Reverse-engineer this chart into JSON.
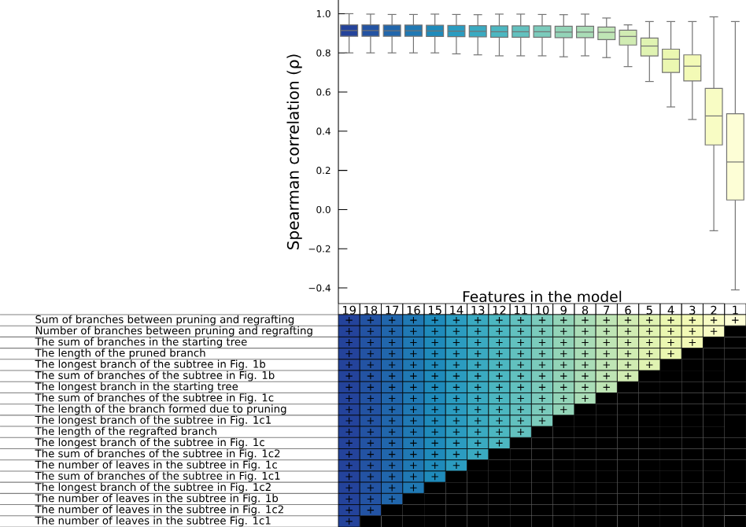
{
  "chart_data": [
    {
      "type": "box",
      "xlabel": "Features in the model",
      "ylabel": "Spearman correlation (ρ)",
      "categories": [
        "19",
        "18",
        "17",
        "16",
        "15",
        "14",
        "13",
        "12",
        "11",
        "10",
        "9",
        "8",
        "7",
        "6",
        "5",
        "4",
        "3",
        "2",
        "1"
      ],
      "colors": [
        "#24439b",
        "#2353a3",
        "#2166ac",
        "#2079b4",
        "#1f8bbb",
        "#2b9cc0",
        "#3aaac1",
        "#4cb7c1",
        "#62c1bf",
        "#7bcbbc",
        "#93d4b8",
        "#aaddb7",
        "#bfe5b5",
        "#d1ecb3",
        "#e0f3b2",
        "#ebf7b1",
        "#f3fab6",
        "#f8fcc4",
        "#fdfed6"
      ],
      "boxes": [
        {
          "low": 0.8,
          "q1": 0.885,
          "median": 0.914,
          "q3": 0.943,
          "high": 1.0
        },
        {
          "low": 0.8,
          "q1": 0.885,
          "median": 0.914,
          "q3": 0.943,
          "high": 0.998
        },
        {
          "low": 0.8,
          "q1": 0.885,
          "median": 0.913,
          "q3": 0.942,
          "high": 0.996
        },
        {
          "low": 0.8,
          "q1": 0.885,
          "median": 0.913,
          "q3": 0.942,
          "high": 0.996
        },
        {
          "low": 0.8,
          "q1": 0.884,
          "median": 0.912,
          "q3": 0.941,
          "high": 0.998
        },
        {
          "low": 0.795,
          "q1": 0.883,
          "median": 0.911,
          "q3": 0.94,
          "high": 0.996
        },
        {
          "low": 0.79,
          "q1": 0.882,
          "median": 0.91,
          "q3": 0.939,
          "high": 0.995
        },
        {
          "low": 0.785,
          "q1": 0.88,
          "median": 0.908,
          "q3": 0.938,
          "high": 0.998
        },
        {
          "low": 0.785,
          "q1": 0.88,
          "median": 0.908,
          "q3": 0.938,
          "high": 0.998
        },
        {
          "low": 0.785,
          "q1": 0.88,
          "median": 0.908,
          "q3": 0.938,
          "high": 0.996
        },
        {
          "low": 0.78,
          "q1": 0.878,
          "median": 0.906,
          "q3": 0.936,
          "high": 0.995
        },
        {
          "low": 0.785,
          "q1": 0.878,
          "median": 0.906,
          "q3": 0.936,
          "high": 0.998
        },
        {
          "low": 0.776,
          "q1": 0.868,
          "median": 0.905,
          "q3": 0.932,
          "high": 0.978
        },
        {
          "low": 0.73,
          "q1": 0.84,
          "median": 0.884,
          "q3": 0.916,
          "high": 0.943
        },
        {
          "low": 0.654,
          "q1": 0.784,
          "median": 0.835,
          "q3": 0.876,
          "high": 0.96
        },
        {
          "low": 0.524,
          "q1": 0.7,
          "median": 0.768,
          "q3": 0.819,
          "high": 0.96
        },
        {
          "low": 0.46,
          "q1": 0.657,
          "median": 0.732,
          "q3": 0.79,
          "high": 0.96
        },
        {
          "low": -0.108,
          "q1": 0.33,
          "median": 0.478,
          "q3": 0.619,
          "high": 0.984
        },
        {
          "low": -0.41,
          "q1": 0.049,
          "median": 0.243,
          "q3": 0.489,
          "high": 0.96
        }
      ],
      "ylim": [
        -0.48,
        1.07
      ],
      "yticks": [
        {
          "value": -0.4,
          "label": "−0.4"
        },
        {
          "value": -0.2,
          "label": "−0.2"
        },
        {
          "value": 0,
          "label": "0.0"
        },
        {
          "value": 0.2,
          "label": "0.2"
        },
        {
          "value": 0.4,
          "label": "0.4"
        },
        {
          "value": 0.6,
          "label": "0.6"
        },
        {
          "value": 0.8,
          "label": "0.8"
        },
        {
          "value": 1,
          "label": "1.0"
        }
      ]
    },
    {
      "type": "other",
      "categories": [
        null,
        null,
        null,
        null,
        null,
        null,
        null,
        null,
        null,
        null,
        null,
        null,
        null,
        null,
        null,
        null,
        null,
        null,
        null
      ],
      "colors": [
        "#24439b",
        "#2353a3",
        "#2166ac",
        "#2079b4",
        "#1f8bbb",
        "#2b9cc0",
        "#3aaac1",
        "#4cb7c1",
        "#62c1bf",
        "#7bcbbc",
        "#93d4b8",
        "#aaddb7",
        "#bfe5b5",
        "#d1ecb3",
        "#e0f3b2",
        "#ebf7b1",
        "#f3fab6",
        "#f8fcc4",
        "#fdfed6"
      ],
      "y_categories": [
        "Sum of branches between pruning and regrafting",
        "Number of branches between pruning and regrafting",
        "The sum of branches in the starting tree",
        "The length of the pruned branch",
        "The longest branch of the subtree in Fig. 1b",
        "The sum of branches of the subtree in Fig. 1b",
        "The longest branch in the starting tree",
        "The sum of branches of the subtree in Fig. 1c",
        "The length of the branch formed due to pruning",
        "The longest branch of the subtree in Fig. 1c1",
        "The length of the regrafted branch",
        "The longest branch of the subtree in Fig. 1c",
        "The sum of branches of the subtree in Fig. 1c2",
        "The number of leaves in the subtree in Fig. 1c",
        "The sum of branches of the subtree in Fig. 1c1",
        "The longest branch of the subtree in Fig. 1c2",
        "The number of leaves in the subtree in Fig. 1b",
        "The number of leaves in the subtree in Fig. 1c2",
        "The number of leaves in the subtree Fig. 1c1"
      ],
      "cell_labels": [
        [
          "+",
          "+",
          "+",
          "+",
          "+",
          "+",
          "+",
          "+",
          "+",
          "+",
          "+",
          "+",
          "+",
          "+",
          "+",
          "+",
          "+",
          "+",
          "+"
        ],
        [
          "+",
          "+",
          "+",
          "+",
          "+",
          "+",
          "+",
          "+",
          "+",
          "+",
          "+",
          "+",
          "+",
          "+",
          "+",
          "+",
          "+",
          "+",
          null
        ],
        [
          "+",
          "+",
          "+",
          "+",
          "+",
          "+",
          "+",
          "+",
          "+",
          "+",
          "+",
          "+",
          "+",
          "+",
          "+",
          "+",
          "+",
          null,
          null
        ],
        [
          "+",
          "+",
          "+",
          "+",
          "+",
          "+",
          "+",
          "+",
          "+",
          "+",
          "+",
          "+",
          "+",
          "+",
          "+",
          "+",
          null,
          null,
          null
        ],
        [
          "+",
          "+",
          "+",
          "+",
          "+",
          "+",
          "+",
          "+",
          "+",
          "+",
          "+",
          "+",
          "+",
          "+",
          "+",
          null,
          null,
          null,
          null
        ],
        [
          "+",
          "+",
          "+",
          "+",
          "+",
          "+",
          "+",
          "+",
          "+",
          "+",
          "+",
          "+",
          "+",
          "+",
          null,
          null,
          null,
          null,
          null
        ],
        [
          "+",
          "+",
          "+",
          "+",
          "+",
          "+",
          "+",
          "+",
          "+",
          "+",
          "+",
          "+",
          "+",
          null,
          null,
          null,
          null,
          null,
          null
        ],
        [
          "+",
          "+",
          "+",
          "+",
          "+",
          "+",
          "+",
          "+",
          "+",
          "+",
          "+",
          "+",
          null,
          null,
          null,
          null,
          null,
          null,
          null
        ],
        [
          "+",
          "+",
          "+",
          "+",
          "+",
          "+",
          "+",
          "+",
          "+",
          "+",
          "+",
          null,
          null,
          null,
          null,
          null,
          null,
          null,
          null
        ],
        [
          "+",
          "+",
          "+",
          "+",
          "+",
          "+",
          "+",
          "+",
          "+",
          "+",
          null,
          null,
          null,
          null,
          null,
          null,
          null,
          null,
          null
        ],
        [
          "+",
          "+",
          "+",
          "+",
          "+",
          "+",
          "+",
          "+",
          "+",
          null,
          null,
          null,
          null,
          null,
          null,
          null,
          null,
          null,
          null
        ],
        [
          "+",
          "+",
          "+",
          "+",
          "+",
          "+",
          "+",
          "+",
          null,
          null,
          null,
          null,
          null,
          null,
          null,
          null,
          null,
          null,
          null
        ],
        [
          "+",
          "+",
          "+",
          "+",
          "+",
          "+",
          "+",
          null,
          null,
          null,
          null,
          null,
          null,
          null,
          null,
          null,
          null,
          null,
          null
        ],
        [
          "+",
          "+",
          "+",
          "+",
          "+",
          "+",
          null,
          null,
          null,
          null,
          null,
          null,
          null,
          null,
          null,
          null,
          null,
          null,
          null
        ],
        [
          "+",
          "+",
          "+",
          "+",
          "+",
          null,
          null,
          null,
          null,
          null,
          null,
          null,
          null,
          null,
          null,
          null,
          null,
          null,
          null
        ],
        [
          "+",
          "+",
          "+",
          "+",
          null,
          null,
          null,
          null,
          null,
          null,
          null,
          null,
          null,
          null,
          null,
          null,
          null,
          null,
          null
        ],
        [
          "+",
          "+",
          "+",
          null,
          null,
          null,
          null,
          null,
          null,
          null,
          null,
          null,
          null,
          null,
          null,
          null,
          null,
          null,
          null
        ],
        [
          "+",
          "+",
          null,
          null,
          null,
          null,
          null,
          null,
          null,
          null,
          null,
          null,
          null,
          null,
          null,
          null,
          null,
          null,
          null
        ],
        [
          "+",
          null,
          null,
          null,
          null,
          null,
          null,
          null,
          null,
          null,
          null,
          null,
          null,
          null,
          null,
          null,
          null,
          null,
          null
        ]
      ]
    }
  ]
}
